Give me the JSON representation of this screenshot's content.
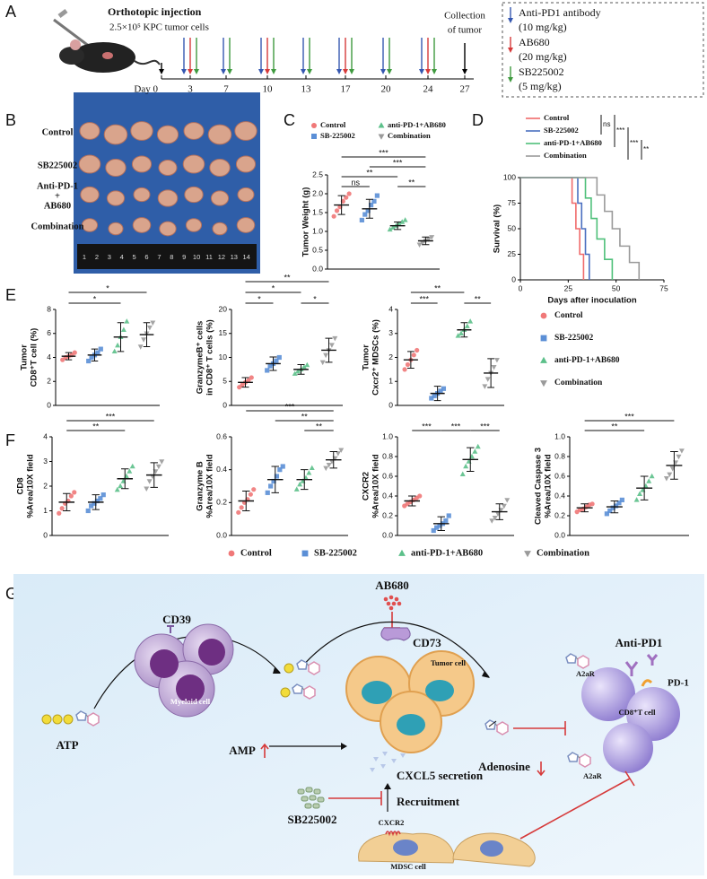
{
  "panel_letters": [
    "A",
    "B",
    "C",
    "D",
    "E",
    "F",
    "G"
  ],
  "timeline": {
    "title": "Orthotopic injection",
    "cells": "2.5×10⁵ KPC tumor cells",
    "collection": [
      "Collection",
      "of tumor"
    ],
    "days": [
      "Day 0",
      "3",
      "7",
      "10",
      "13",
      "17",
      "20",
      "24",
      "27"
    ],
    "legend": [
      {
        "name": "Anti-PD1 antibody",
        "dose": "(10 mg/kg)",
        "color": "#3557b0"
      },
      {
        "name": "AB680",
        "dose": "(20 mg/kg)",
        "color": "#d63a3a"
      },
      {
        "name": "SB225002",
        "dose": "(5 mg/kg)",
        "color": "#3f9a3f"
      }
    ]
  },
  "photo": {
    "rows": [
      [
        "Control"
      ],
      [
        "SB225002"
      ],
      [
        "Anti-PD-1",
        "+",
        "AB680"
      ],
      [
        "Combination"
      ]
    ],
    "ruler": [
      "1",
      "2",
      "3",
      "4",
      "5",
      "6",
      "7",
      "8",
      "9",
      "10",
      "11",
      "12",
      "13",
      "14"
    ]
  },
  "group_legends": {
    "E": [
      {
        "name": "Control",
        "color": "#f07878",
        "marker": "circle"
      },
      {
        "name": "SB-225002",
        "color": "#5b8fd6",
        "marker": "square"
      },
      {
        "name": "anti-PD-1+AB680",
        "color": "#5cc08a",
        "marker": "tri-up"
      },
      {
        "name": "Combination",
        "color": "#9a9a9a",
        "marker": "tri-down"
      }
    ],
    "F": [
      {
        "name": "Control",
        "color": "#f07878",
        "marker": "circle"
      },
      {
        "name": "SB-225002",
        "color": "#5b8fd6",
        "marker": "square"
      },
      {
        "name": "anti-PD-1+AB680",
        "color": "#5cc08a",
        "marker": "tri-up"
      },
      {
        "name": "Combination",
        "color": "#9a9a9a",
        "marker": "tri-down"
      }
    ]
  },
  "chart_data": [
    {
      "type": "dot",
      "ylabel": [
        "Tumor Weight (g)"
      ],
      "ylim": [
        0,
        2.5
      ],
      "yticks": [
        {
          "value": 0,
          "label": "0.0"
        },
        0.5,
        {
          "value": 1,
          "label": "1.0"
        },
        1.5,
        {
          "value": 2,
          "label": "2.0"
        },
        2.5
      ],
      "series": [
        {
          "name": "Control",
          "color": "#f07878",
          "marker": "circle",
          "values": [
            1.4,
            1.55,
            1.65,
            1.8,
            1.9,
            2.0
          ],
          "mean": 1.7,
          "sd": 0.25
        },
        {
          "name": "SB-225002",
          "color": "#5b8fd6",
          "marker": "square",
          "values": [
            1.3,
            1.45,
            1.55,
            1.7,
            1.8,
            1.95
          ],
          "mean": 1.6,
          "sd": 0.25
        },
        {
          "name": "anti-PD-1+AB680",
          "color": "#5cc08a",
          "marker": "tri-up",
          "values": [
            1.05,
            1.1,
            1.15,
            1.2,
            1.25,
            1.3
          ],
          "mean": 1.15,
          "sd": 0.1
        },
        {
          "name": "Combination",
          "color": "#9a9a9a",
          "marker": "tri-down",
          "values": [
            0.65,
            0.7,
            0.75,
            0.8,
            0.85
          ],
          "mean": 0.75,
          "sd": 0.1
        }
      ],
      "brackets": [
        {
          "pair": [
            0,
            1
          ],
          "label": "ns"
        },
        {
          "pair": [
            2,
            3
          ],
          "label": "**"
        },
        {
          "pair": [
            0,
            2
          ],
          "label": "**"
        },
        {
          "pair": [
            1,
            3
          ],
          "label": "***"
        },
        {
          "pair": [
            0,
            3
          ],
          "label": "***"
        }
      ]
    },
    {
      "type": "survival",
      "xlabel": "Days after inoculation",
      "ylabel": "Survival (%)",
      "xlim": [
        0,
        75
      ],
      "xticks": [
        0,
        25,
        50,
        75
      ],
      "ylim": [
        0,
        100
      ],
      "yticks": [
        0,
        25,
        50,
        75,
        100
      ],
      "series": [
        {
          "name": "Control",
          "color": "#f06a6a",
          "x": [
            0,
            27,
            29,
            31,
            33
          ],
          "values": [
            100,
            75,
            50,
            25,
            0
          ]
        },
        {
          "name": "SB-225002",
          "color": "#4a6fc0",
          "x": [
            0,
            30,
            32,
            34,
            36
          ],
          "values": [
            100,
            75,
            50,
            25,
            0
          ]
        },
        {
          "name": "anti-PD-1+AB680",
          "color": "#4fc07a",
          "x": [
            0,
            34,
            37,
            40,
            44,
            48
          ],
          "values": [
            100,
            80,
            60,
            40,
            20,
            0
          ]
        },
        {
          "name": "Combination",
          "color": "#9a9a9a",
          "x": [
            0,
            40,
            44,
            48,
            52,
            57,
            62
          ],
          "values": [
            100,
            83,
            67,
            50,
            33,
            17,
            0
          ]
        }
      ],
      "comparisons": [
        {
          "pair": [
            0,
            1
          ],
          "label": "ns"
        },
        {
          "pair": [
            0,
            2
          ],
          "label": "***"
        },
        {
          "pair": [
            1,
            3
          ],
          "label": "***"
        },
        {
          "pair": [
            2,
            3
          ],
          "label": "**"
        }
      ]
    },
    {
      "type": "dot",
      "ylabel": [
        "Tumor",
        "CD8⁺T cell (%)"
      ],
      "ylim": [
        0,
        8
      ],
      "yticks": [
        0,
        2,
        4,
        6,
        8
      ],
      "series": [
        {
          "values": [
            3.8,
            4.0,
            4.1,
            4.2,
            4.4
          ],
          "mean": 4.1,
          "sd": 0.3
        },
        {
          "values": [
            3.7,
            4.0,
            4.2,
            4.4,
            4.7
          ],
          "mean": 4.2,
          "sd": 0.5
        },
        {
          "values": [
            4.5,
            5.0,
            5.7,
            6.3,
            7.0
          ],
          "mean": 5.7,
          "sd": 1.2
        },
        {
          "values": [
            4.9,
            5.5,
            6.0,
            6.5,
            6.9
          ],
          "mean": 5.9,
          "sd": 1.0
        }
      ],
      "brackets": [
        {
          "pair": [
            0,
            2
          ],
          "label": "*"
        },
        {
          "pair": [
            0,
            3
          ],
          "label": "*"
        }
      ]
    },
    {
      "type": "dot",
      "ylabel": [
        "GranzymeB⁺ cells",
        "in CD8⁺ T cells (%)"
      ],
      "ylim": [
        0,
        20
      ],
      "yticks": [
        0,
        5,
        10,
        15,
        20
      ],
      "series": [
        {
          "values": [
            3.8,
            4.3,
            4.8,
            5.2,
            5.8
          ],
          "mean": 4.8,
          "sd": 1
        },
        {
          "values": [
            7.3,
            8.2,
            8.7,
            9.3,
            10
          ],
          "mean": 8.7,
          "sd": 1.4
        },
        {
          "values": [
            6.6,
            7.1,
            7.5,
            8,
            8.4
          ],
          "mean": 7.5,
          "sd": 1
        },
        {
          "values": [
            9,
            10.5,
            11.5,
            12.6,
            14
          ],
          "mean": 11.5,
          "sd": 2.5
        }
      ],
      "brackets": [
        {
          "pair": [
            0,
            1
          ],
          "label": "*"
        },
        {
          "pair": [
            2,
            3
          ],
          "label": "*"
        },
        {
          "pair": [
            0,
            2
          ],
          "label": "*"
        },
        {
          "pair": [
            0,
            3
          ],
          "label": "**"
        }
      ]
    },
    {
      "type": "dot",
      "ylabel": [
        "Tumor",
        "Cxcr2⁺ MDSCs (%)"
      ],
      "ylim": [
        0,
        4
      ],
      "yticks": [
        0,
        1,
        2,
        3,
        4
      ],
      "series": [
        {
          "values": [
            1.5,
            1.7,
            1.9,
            2.1,
            2.3
          ],
          "mean": 1.9,
          "sd": 0.35
        },
        {
          "values": [
            0.3,
            0.4,
            0.5,
            0.6,
            0.7
          ],
          "mean": 0.5,
          "sd": 0.3
        },
        {
          "values": [
            2.9,
            3.0,
            3.15,
            3.3,
            3.5
          ],
          "mean": 3.15,
          "sd": 0.3
        },
        {
          "values": [
            0.8,
            1.1,
            1.35,
            1.6,
            1.9
          ],
          "mean": 1.35,
          "sd": 0.6
        }
      ],
      "brackets": [
        {
          "pair": [
            0,
            1
          ],
          "label": "***"
        },
        {
          "pair": [
            2,
            3
          ],
          "label": "**"
        },
        {
          "pair": [
            0,
            2
          ],
          "label": "**"
        }
      ]
    },
    {
      "type": "dot",
      "ylabel": [
        "CD8",
        "%Area/10X field"
      ],
      "ylim": [
        0,
        4
      ],
      "yticks": [
        0,
        1,
        2,
        3,
        4
      ],
      "series": [
        {
          "values": [
            0.9,
            1.1,
            1.3,
            1.4,
            1.6,
            1.75
          ],
          "mean": 1.35,
          "sd": 0.35
        },
        {
          "values": [
            1.0,
            1.2,
            1.3,
            1.4,
            1.5,
            1.65
          ],
          "mean": 1.35,
          "sd": 0.3
        },
        {
          "values": [
            1.85,
            2.0,
            2.2,
            2.4,
            2.6,
            2.8
          ],
          "mean": 2.3,
          "sd": 0.4
        },
        {
          "values": [
            1.9,
            2.2,
            2.4,
            2.6,
            2.8,
            3.0
          ],
          "mean": 2.45,
          "sd": 0.5
        }
      ],
      "brackets": [
        {
          "pair": [
            0,
            2
          ],
          "label": "**"
        },
        {
          "pair": [
            0,
            3
          ],
          "label": "***"
        }
      ]
    },
    {
      "type": "dot",
      "ylabel": [
        "Granzyme B",
        "%Area/10X field"
      ],
      "ylim": [
        0,
        0.6
      ],
      "yticks": [
        {
          "value": 0,
          "label": "0.0"
        },
        0.2,
        0.4,
        0.6
      ],
      "series": [
        {
          "values": [
            0.14,
            0.17,
            0.2,
            0.22,
            0.25,
            0.28
          ],
          "mean": 0.21,
          "sd": 0.06
        },
        {
          "values": [
            0.26,
            0.3,
            0.33,
            0.36,
            0.4,
            0.42
          ],
          "mean": 0.34,
          "sd": 0.08
        },
        {
          "values": [
            0.28,
            0.31,
            0.33,
            0.35,
            0.38,
            0.41
          ],
          "mean": 0.34,
          "sd": 0.06
        },
        {
          "values": [
            0.41,
            0.43,
            0.45,
            0.47,
            0.5,
            0.52
          ],
          "mean": 0.46,
          "sd": 0.05
        }
      ],
      "brackets": [
        {
          "pair": [
            2,
            3
          ],
          "label": "**"
        },
        {
          "pair": [
            1,
            3
          ],
          "label": "**"
        },
        {
          "pair": [
            0,
            3
          ],
          "label": "***"
        }
      ]
    },
    {
      "type": "dot",
      "ylabel": [
        "CXCR2",
        "%Area/10X field"
      ],
      "ylim": [
        0,
        1
      ],
      "yticks": [
        {
          "value": 0,
          "label": "0.0"
        },
        0.2,
        0.4,
        0.6,
        0.8,
        {
          "value": 1,
          "label": "1.0"
        }
      ],
      "series": [
        {
          "values": [
            0.3,
            0.32,
            0.34,
            0.36,
            0.38,
            0.4
          ],
          "mean": 0.35,
          "sd": 0.05
        },
        {
          "values": [
            0.05,
            0.08,
            0.1,
            0.12,
            0.15,
            0.2
          ],
          "mean": 0.12,
          "sd": 0.07
        },
        {
          "values": [
            0.62,
            0.7,
            0.75,
            0.8,
            0.85,
            0.9
          ],
          "mean": 0.77,
          "sd": 0.12
        },
        {
          "values": [
            0.15,
            0.18,
            0.22,
            0.26,
            0.3,
            0.36
          ],
          "mean": 0.24,
          "sd": 0.08
        }
      ],
      "brackets": [
        {
          "pair": [
            0,
            1
          ],
          "label": "***"
        },
        {
          "pair": [
            1,
            2
          ],
          "label": "***"
        },
        {
          "pair": [
            2,
            3
          ],
          "label": "***"
        }
      ]
    },
    {
      "type": "dot",
      "ylabel": [
        "Cleaved Caspase 3",
        "%Area/10X field"
      ],
      "ylim": [
        0,
        1
      ],
      "yticks": [
        {
          "value": 0,
          "label": "0.0"
        },
        0.2,
        0.4,
        0.6,
        0.8,
        {
          "value": 1,
          "label": "1.0"
        }
      ],
      "series": [
        {
          "values": [
            0.24,
            0.26,
            0.27,
            0.29,
            0.31,
            0.32
          ],
          "mean": 0.28,
          "sd": 0.04
        },
        {
          "values": [
            0.22,
            0.25,
            0.28,
            0.3,
            0.33,
            0.36
          ],
          "mean": 0.29,
          "sd": 0.06
        },
        {
          "values": [
            0.36,
            0.42,
            0.46,
            0.5,
            0.55,
            0.6
          ],
          "mean": 0.48,
          "sd": 0.12
        },
        {
          "values": [
            0.58,
            0.62,
            0.68,
            0.74,
            0.8,
            0.86
          ],
          "mean": 0.71,
          "sd": 0.14
        }
      ],
      "brackets": [
        {
          "pair": [
            0,
            2
          ],
          "label": "**"
        },
        {
          "pair": [
            0,
            3
          ],
          "label": "***"
        }
      ]
    }
  ],
  "diagram": {
    "ab680": "AB680",
    "cd39": "CD39",
    "cd73": "CD73",
    "tumor_cell": "Tumor cell",
    "myeloid_cell": "Myeloid cell",
    "atp": "ATP",
    "amp": "AMP",
    "adenosine": "Adenosine",
    "cxcl5": "CXCL5 secretion",
    "anti_pd1": "Anti-PD1",
    "pd1": "PD-1",
    "a2ar": [
      "A2aR",
      "A2aR"
    ],
    "cd8": "CD8⁺T cell",
    "recruitment": "Recruitment",
    "sb225002": "SB225002",
    "cxcr2": "CXCR2",
    "mdsc": "MDSC cell"
  }
}
